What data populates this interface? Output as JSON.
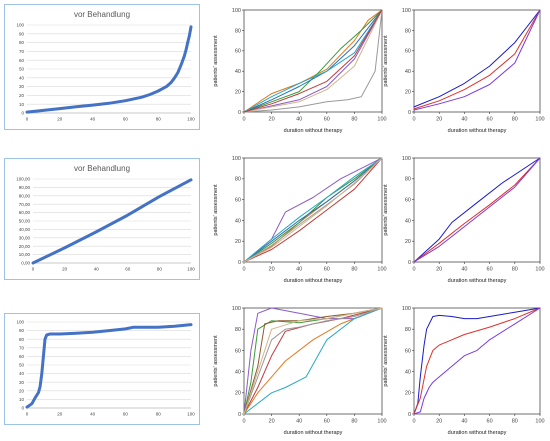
{
  "chart_data": [
    {
      "type": "line",
      "title": "vor Behandlung",
      "xlim": [
        0,
        100
      ],
      "ylim": [
        0,
        100
      ],
      "xticks": [
        "0",
        "20",
        "40",
        "60",
        "80",
        "100"
      ],
      "yticks": [
        "0",
        "10",
        "20",
        "30",
        "40",
        "50",
        "60",
        "70",
        "80",
        "90",
        "100"
      ],
      "grid": true,
      "series": [
        {
          "color": "#4472c4",
          "x": [
            0,
            10,
            20,
            30,
            40,
            50,
            60,
            70,
            75,
            80,
            85,
            88,
            90,
            92,
            94,
            96,
            97,
            98,
            99,
            100
          ],
          "y": [
            1,
            3,
            5,
            7,
            9,
            11,
            14,
            18,
            21,
            25,
            30,
            35,
            40,
            46,
            55,
            65,
            72,
            80,
            88,
            98
          ]
        }
      ]
    },
    {
      "type": "line",
      "xlabel": "duration without therapy",
      "ylabel": "patients' assessment",
      "xlim": [
        0,
        100
      ],
      "ylim": [
        0,
        100
      ],
      "xticks": [
        "0",
        "20",
        "40",
        "60",
        "80",
        "100"
      ],
      "yticks": [
        "0",
        "20",
        "40",
        "60",
        "80",
        "100"
      ],
      "series": [
        {
          "color": "#e07a1f",
          "x": [
            0,
            20,
            40,
            60,
            80,
            90,
            100
          ],
          "y": [
            0,
            18,
            28,
            42,
            70,
            90,
            100
          ]
        },
        {
          "color": "#3a9a3a",
          "x": [
            0,
            20,
            40,
            55,
            70,
            85,
            100
          ],
          "y": [
            0,
            10,
            20,
            40,
            62,
            80,
            100
          ]
        },
        {
          "color": "#2f6fb8",
          "x": [
            0,
            20,
            40,
            60,
            80,
            100
          ],
          "y": [
            0,
            12,
            25,
            40,
            65,
            100
          ]
        },
        {
          "color": "#27a9c2",
          "x": [
            0,
            20,
            40,
            60,
            80,
            100
          ],
          "y": [
            0,
            15,
            28,
            40,
            58,
            100
          ]
        },
        {
          "color": "#8a5cc8",
          "x": [
            0,
            20,
            40,
            60,
            80,
            100
          ],
          "y": [
            0,
            6,
            12,
            25,
            52,
            100
          ]
        },
        {
          "color": "#d2b48c",
          "x": [
            0,
            20,
            40,
            60,
            80,
            100
          ],
          "y": [
            0,
            5,
            10,
            22,
            45,
            100
          ]
        },
        {
          "color": "#9a9a9a",
          "x": [
            0,
            20,
            40,
            60,
            75,
            85,
            95,
            100
          ],
          "y": [
            0,
            2,
            5,
            10,
            12,
            15,
            40,
            100
          ]
        },
        {
          "color": "#c03a3a",
          "x": [
            0,
            20,
            40,
            60,
            80,
            100
          ],
          "y": [
            0,
            8,
            18,
            30,
            55,
            100
          ]
        }
      ]
    },
    {
      "type": "line",
      "xlabel": "duration without therapy",
      "ylabel": "patients' assessment",
      "xlim": [
        0,
        100
      ],
      "ylim": [
        0,
        100
      ],
      "xticks": [
        "0",
        "20",
        "40",
        "60",
        "80",
        "100"
      ],
      "yticks": [
        "0",
        "20",
        "40",
        "60",
        "80",
        "100"
      ],
      "series": [
        {
          "color": "#1a1acc",
          "x": [
            0,
            20,
            40,
            60,
            80,
            100
          ],
          "y": [
            5,
            15,
            28,
            45,
            68,
            100
          ]
        },
        {
          "color": "#e0302a",
          "x": [
            0,
            20,
            40,
            60,
            80,
            100
          ],
          "y": [
            3,
            11,
            22,
            36,
            57,
            100
          ]
        },
        {
          "color": "#7a3ae0",
          "x": [
            0,
            20,
            40,
            60,
            80,
            100
          ],
          "y": [
            2,
            8,
            15,
            27,
            48,
            100
          ]
        }
      ]
    },
    {
      "type": "line",
      "title": "vor Behandlung",
      "xlim": [
        0,
        100
      ],
      "ylim": [
        0,
        100
      ],
      "xticks": [
        "0",
        "20",
        "40",
        "60",
        "80",
        "100"
      ],
      "yticks": [
        "0,00",
        "10,00",
        "20,00",
        "30,00",
        "40,00",
        "50,00",
        "60,00",
        "70,00",
        "80,00",
        "90,00",
        "100,00"
      ],
      "grid": true,
      "series": [
        {
          "color": "#4472c4",
          "x": [
            0,
            20,
            40,
            60,
            80,
            100
          ],
          "y": [
            0,
            18,
            37,
            57,
            79,
            99
          ]
        }
      ]
    },
    {
      "type": "line",
      "xlabel": "duration without therapy",
      "ylabel": "patients' assessment",
      "xlim": [
        0,
        100
      ],
      "ylim": [
        0,
        100
      ],
      "xticks": [
        "0",
        "20",
        "40",
        "60",
        "80",
        "100"
      ],
      "yticks": [
        "0",
        "20",
        "40",
        "60",
        "80",
        "100"
      ],
      "series": [
        {
          "color": "#8a5cc8",
          "x": [
            0,
            20,
            30,
            50,
            70,
            100
          ],
          "y": [
            0,
            22,
            48,
            62,
            80,
            100
          ]
        },
        {
          "color": "#e07a1f",
          "x": [
            0,
            20,
            40,
            60,
            80,
            100
          ],
          "y": [
            0,
            15,
            38,
            58,
            78,
            100
          ]
        },
        {
          "color": "#3a9a3a",
          "x": [
            0,
            20,
            40,
            60,
            80,
            100
          ],
          "y": [
            0,
            18,
            38,
            62,
            80,
            100
          ]
        },
        {
          "color": "#2f6fb8",
          "x": [
            0,
            20,
            40,
            60,
            80,
            100
          ],
          "y": [
            0,
            20,
            40,
            58,
            78,
            100
          ]
        },
        {
          "color": "#27a9c2",
          "x": [
            0,
            20,
            40,
            60,
            80,
            100
          ],
          "y": [
            0,
            22,
            43,
            62,
            82,
            100
          ]
        },
        {
          "color": "#c03a3a",
          "x": [
            0,
            20,
            40,
            60,
            80,
            100
          ],
          "y": [
            0,
            12,
            30,
            50,
            70,
            100
          ]
        },
        {
          "color": "#9a9a9a",
          "x": [
            0,
            20,
            40,
            60,
            80,
            100
          ],
          "y": [
            0,
            16,
            36,
            55,
            75,
            100
          ]
        },
        {
          "color": "#d2b48c",
          "x": [
            0,
            20,
            40,
            60,
            80,
            100
          ],
          "y": [
            0,
            14,
            34,
            54,
            76,
            100
          ]
        }
      ]
    },
    {
      "type": "line",
      "xlabel": "duration without therapy",
      "ylabel": "patients' assessment",
      "xlim": [
        0,
        100
      ],
      "ylim": [
        0,
        100
      ],
      "xticks": [
        "0",
        "20",
        "40",
        "60",
        "80",
        "100"
      ],
      "yticks": [
        "0",
        "20",
        "40",
        "60",
        "80",
        "100"
      ],
      "series": [
        {
          "color": "#1a1acc",
          "x": [
            0,
            20,
            30,
            50,
            70,
            100
          ],
          "y": [
            0,
            22,
            38,
            57,
            76,
            100
          ]
        },
        {
          "color": "#e0302a",
          "x": [
            0,
            20,
            40,
            60,
            80,
            100
          ],
          "y": [
            0,
            18,
            37,
            55,
            74,
            100
          ]
        },
        {
          "color": "#7a3ae0",
          "x": [
            0,
            20,
            40,
            60,
            80,
            100
          ],
          "y": [
            0,
            15,
            34,
            53,
            72,
            100
          ]
        }
      ]
    },
    {
      "type": "line",
      "xlim": [
        0,
        100
      ],
      "ylim": [
        0,
        100
      ],
      "xticks": [
        "0",
        "20",
        "40",
        "60",
        "80",
        "100"
      ],
      "yticks": [
        "0",
        "10",
        "20",
        "30",
        "40",
        "50",
        "60",
        "70",
        "80",
        "90",
        "100"
      ],
      "grid": true,
      "series": [
        {
          "color": "#4472c4",
          "x": [
            0,
            3,
            5,
            7,
            8,
            9,
            10,
            11,
            12,
            14,
            20,
            30,
            40,
            50,
            60,
            65,
            70,
            80,
            90,
            100
          ],
          "y": [
            1,
            5,
            12,
            18,
            25,
            40,
            60,
            80,
            85,
            86,
            86,
            87,
            88,
            90,
            92,
            94,
            94,
            94,
            95,
            97
          ]
        }
      ]
    },
    {
      "type": "line",
      "xlabel": "duration without therapy",
      "ylabel": "patients' assessment",
      "xlim": [
        0,
        100
      ],
      "ylim": [
        0,
        100
      ],
      "xticks": [
        "0",
        "20",
        "40",
        "60",
        "80",
        "100"
      ],
      "yticks": [
        "0",
        "20",
        "40",
        "60",
        "80",
        "100"
      ],
      "series": [
        {
          "color": "#8a5cc8",
          "x": [
            0,
            5,
            10,
            20,
            40,
            60,
            80,
            100
          ],
          "y": [
            0,
            60,
            95,
            100,
            95,
            90,
            90,
            100
          ]
        },
        {
          "color": "#3a9a3a",
          "x": [
            0,
            5,
            10,
            20,
            40,
            60,
            80,
            100
          ],
          "y": [
            0,
            30,
            80,
            88,
            86,
            90,
            95,
            100
          ]
        },
        {
          "color": "#8b5a2b",
          "x": [
            0,
            10,
            15,
            25,
            40,
            60,
            80,
            100
          ],
          "y": [
            0,
            45,
            85,
            88,
            88,
            92,
            95,
            100
          ]
        },
        {
          "color": "#c03a3a",
          "x": [
            0,
            10,
            20,
            30,
            50,
            70,
            100
          ],
          "y": [
            0,
            25,
            55,
            78,
            85,
            90,
            100
          ]
        },
        {
          "color": "#e07a1f",
          "x": [
            0,
            10,
            20,
            30,
            50,
            70,
            100
          ],
          "y": [
            0,
            20,
            35,
            50,
            70,
            85,
            100
          ]
        },
        {
          "color": "#27a9c2",
          "x": [
            0,
            10,
            20,
            30,
            45,
            60,
            80,
            100
          ],
          "y": [
            0,
            10,
            20,
            25,
            35,
            70,
            90,
            100
          ]
        },
        {
          "color": "#9a9a9a",
          "x": [
            0,
            10,
            20,
            30,
            40,
            60,
            80,
            100
          ],
          "y": [
            0,
            35,
            70,
            80,
            82,
            88,
            92,
            100
          ]
        },
        {
          "color": "#d2b48c",
          "x": [
            0,
            10,
            20,
            40,
            60,
            80,
            100
          ],
          "y": [
            0,
            40,
            80,
            88,
            90,
            95,
            100
          ]
        }
      ]
    },
    {
      "type": "line",
      "xlabel": "duration without therapy",
      "ylabel": "patients' assessment",
      "xlim": [
        0,
        100
      ],
      "ylim": [
        0,
        100
      ],
      "xticks": [
        "0",
        "20",
        "40",
        "60",
        "80",
        "100"
      ],
      "yticks": [
        "0",
        "20",
        "40",
        "60",
        "80",
        "100"
      ],
      "series": [
        {
          "color": "#1a1acc",
          "x": [
            0,
            3,
            5,
            8,
            10,
            15,
            20,
            30,
            40,
            50,
            60,
            70,
            80,
            100
          ],
          "y": [
            0,
            10,
            35,
            65,
            80,
            92,
            93,
            92,
            90,
            90,
            92,
            94,
            96,
            100
          ]
        },
        {
          "color": "#e0302a",
          "x": [
            0,
            5,
            10,
            15,
            20,
            30,
            40,
            60,
            80,
            100
          ],
          "y": [
            0,
            15,
            45,
            60,
            65,
            70,
            75,
            82,
            90,
            100
          ]
        },
        {
          "color": "#7a3ae0",
          "x": [
            0,
            5,
            8,
            12,
            15,
            20,
            30,
            40,
            50,
            60,
            80,
            100
          ],
          "y": [
            0,
            2,
            15,
            25,
            30,
            35,
            45,
            55,
            60,
            70,
            85,
            100
          ]
        }
      ]
    }
  ]
}
